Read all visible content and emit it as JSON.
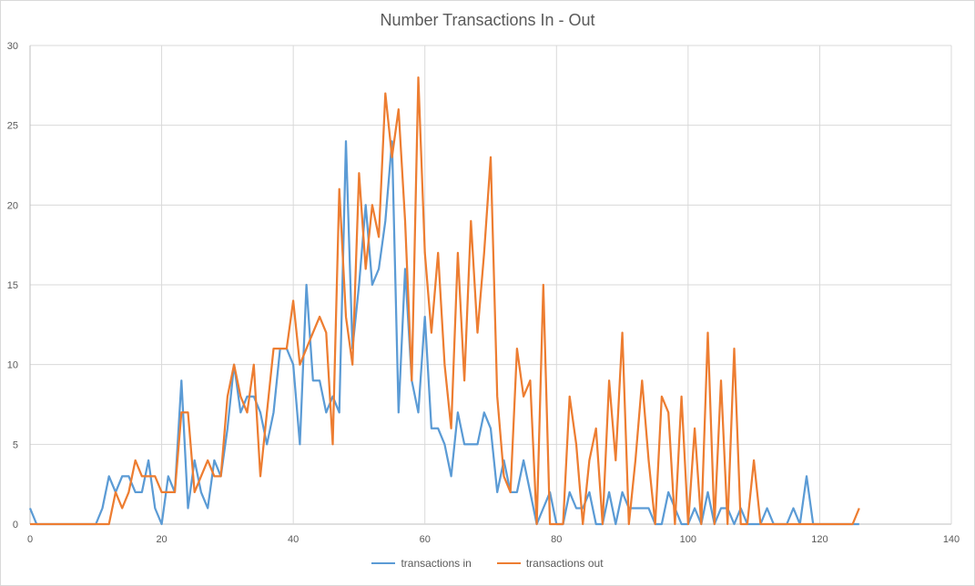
{
  "chart_data": {
    "type": "line",
    "title": "Number Transactions In - Out",
    "xlabel": "",
    "ylabel": "",
    "xlim": [
      0,
      140
    ],
    "ylim": [
      0,
      30
    ],
    "x_ticks": [
      0,
      20,
      40,
      60,
      80,
      100,
      120,
      140
    ],
    "y_ticks": [
      0,
      5,
      10,
      15,
      20,
      25,
      30
    ],
    "grid": true,
    "legend_position": "bottom",
    "series": [
      {
        "name": "transactions in",
        "color": "#5b9bd5",
        "x": [
          0,
          1,
          2,
          3,
          4,
          5,
          6,
          7,
          8,
          9,
          10,
          11,
          12,
          13,
          14,
          15,
          16,
          17,
          18,
          19,
          20,
          21,
          22,
          23,
          24,
          25,
          26,
          27,
          28,
          29,
          30,
          31,
          32,
          33,
          34,
          35,
          36,
          37,
          38,
          39,
          40,
          41,
          42,
          43,
          44,
          45,
          46,
          47,
          48,
          49,
          50,
          51,
          52,
          53,
          54,
          55,
          56,
          57,
          58,
          59,
          60,
          61,
          62,
          63,
          64,
          65,
          66,
          67,
          68,
          69,
          70,
          71,
          72,
          73,
          74,
          75,
          76,
          77,
          78,
          79,
          80,
          81,
          82,
          83,
          84,
          85,
          86,
          87,
          88,
          89,
          90,
          91,
          92,
          93,
          94,
          95,
          96,
          97,
          98,
          99,
          100,
          101,
          102,
          103,
          104,
          105,
          106,
          107,
          108,
          109,
          110,
          111,
          112,
          113,
          114,
          115,
          116,
          117,
          118,
          119,
          120,
          121,
          122,
          123,
          124,
          125,
          126
        ],
        "values": [
          1,
          0,
          0,
          0,
          0,
          0,
          0,
          0,
          0,
          0,
          0,
          1,
          3,
          2,
          3,
          3,
          2,
          2,
          4,
          1,
          0,
          3,
          2,
          9,
          1,
          4,
          2,
          1,
          4,
          3,
          6,
          10,
          7,
          8,
          8,
          7,
          5,
          7,
          11,
          11,
          10,
          5,
          15,
          9,
          9,
          7,
          8,
          7,
          24,
          11,
          15,
          20,
          15,
          16,
          19,
          24,
          7,
          16,
          9,
          7,
          13,
          6,
          6,
          5,
          3,
          7,
          5,
          5,
          5,
          7,
          6,
          2,
          4,
          2,
          2,
          4,
          2,
          0,
          1,
          2,
          0,
          0,
          2,
          1,
          1,
          2,
          0,
          0,
          2,
          0,
          2,
          1,
          1,
          1,
          1,
          0,
          0,
          2,
          1,
          0,
          0,
          1,
          0,
          2,
          0,
          1,
          1,
          0,
          1,
          0,
          0,
          0,
          1,
          0,
          0,
          0,
          1,
          0,
          3,
          0,
          0,
          0,
          0,
          0,
          0,
          0,
          0
        ]
      },
      {
        "name": "transactions out",
        "color": "#ed7d31",
        "x": [
          0,
          1,
          2,
          3,
          4,
          5,
          6,
          7,
          8,
          9,
          10,
          11,
          12,
          13,
          14,
          15,
          16,
          17,
          18,
          19,
          20,
          21,
          22,
          23,
          24,
          25,
          26,
          27,
          28,
          29,
          30,
          31,
          32,
          33,
          34,
          35,
          36,
          37,
          38,
          39,
          40,
          41,
          42,
          43,
          44,
          45,
          46,
          47,
          48,
          49,
          50,
          51,
          52,
          53,
          54,
          55,
          56,
          57,
          58,
          59,
          60,
          61,
          62,
          63,
          64,
          65,
          66,
          67,
          68,
          69,
          70,
          71,
          72,
          73,
          74,
          75,
          76,
          77,
          78,
          79,
          80,
          81,
          82,
          83,
          84,
          85,
          86,
          87,
          88,
          89,
          90,
          91,
          92,
          93,
          94,
          95,
          96,
          97,
          98,
          99,
          100,
          101,
          102,
          103,
          104,
          105,
          106,
          107,
          108,
          109,
          110,
          111,
          112,
          113,
          114,
          115,
          116,
          117,
          118,
          119,
          120,
          121,
          122,
          123,
          124,
          125,
          126
        ],
        "values": [
          0,
          0,
          0,
          0,
          0,
          0,
          0,
          0,
          0,
          0,
          0,
          0,
          0,
          2,
          1,
          2,
          4,
          3,
          3,
          3,
          2,
          2,
          2,
          7,
          7,
          2,
          3,
          4,
          3,
          3,
          8,
          10,
          8,
          7,
          10,
          3,
          7,
          11,
          11,
          11,
          14,
          10,
          11,
          12,
          13,
          12,
          5,
          21,
          13,
          10,
          22,
          16,
          20,
          18,
          27,
          23,
          26,
          19,
          9,
          28,
          17,
          12,
          17,
          10,
          6,
          17,
          9,
          19,
          12,
          17,
          23,
          8,
          3,
          2,
          11,
          8,
          9,
          0,
          15,
          0,
          0,
          0,
          8,
          5,
          0,
          4,
          6,
          0,
          9,
          4,
          12,
          0,
          4,
          9,
          4,
          0,
          8,
          7,
          0,
          8,
          0,
          6,
          0,
          12,
          0,
          9,
          0,
          11,
          0,
          0,
          4,
          0,
          0,
          0,
          0,
          0,
          0,
          0,
          0,
          0,
          0,
          0,
          0,
          0,
          0,
          0,
          1
        ]
      }
    ]
  }
}
